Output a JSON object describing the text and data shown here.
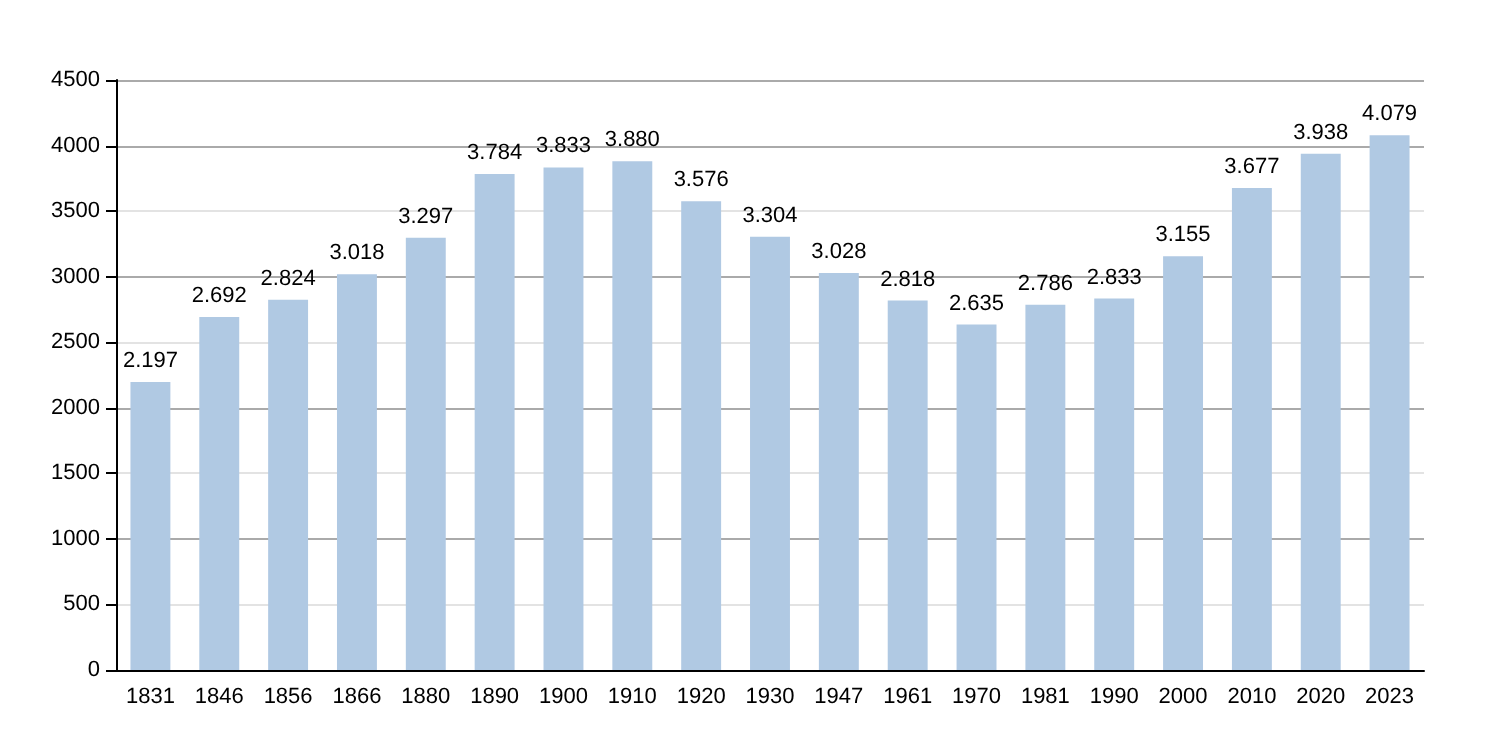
{
  "chart_data": {
    "type": "bar",
    "categories": [
      "1831",
      "1846",
      "1856",
      "1866",
      "1880",
      "1890",
      "1900",
      "1910",
      "1920",
      "1930",
      "1947",
      "1961",
      "1970",
      "1981",
      "1990",
      "2000",
      "2010",
      "2020",
      "2023"
    ],
    "values": [
      2197,
      2692,
      2824,
      3018,
      3297,
      3784,
      3833,
      3880,
      3576,
      3304,
      3028,
      2818,
      2635,
      2786,
      2833,
      3155,
      3677,
      3938,
      4079
    ],
    "value_labels": [
      "2.197",
      "2.692",
      "2.824",
      "3.018",
      "3.297",
      "3.784",
      "3.833",
      "3.880",
      "3.576",
      "3.304",
      "3.028",
      "2.818",
      "2.635",
      "2.786",
      "2.833",
      "3.155",
      "3.677",
      "3.938",
      "4.079"
    ],
    "color": "#b0c9e3",
    "ylim": [
      0,
      4500
    ],
    "yticks": [
      0,
      500,
      1000,
      1500,
      2000,
      2500,
      3000,
      3500,
      4000,
      4500
    ],
    "grid": "y"
  }
}
